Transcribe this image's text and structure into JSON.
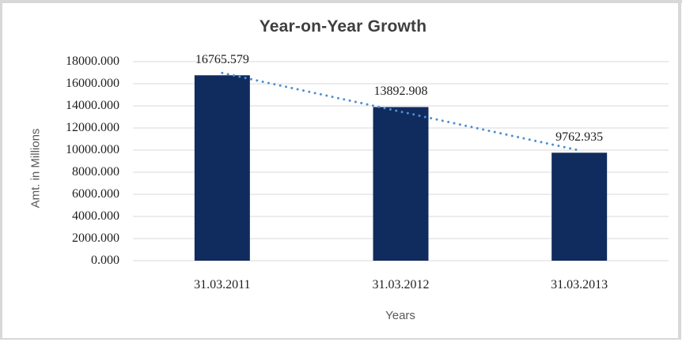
{
  "chart_data": {
    "type": "bar",
    "title": "Year-on-Year Growth",
    "xlabel": "Years",
    "ylabel": "Amt. in Millions",
    "categories": [
      "31.03.2011",
      "31.03.2012",
      "31.03.2013"
    ],
    "series": [
      {
        "name": "Amt. in Millions",
        "values": [
          16765.579,
          13892.908,
          9762.935
        ]
      }
    ],
    "data_labels": [
      "16765.579",
      "13892.908",
      "9762.935"
    ],
    "y_ticks": [
      0,
      2000,
      4000,
      6000,
      8000,
      10000,
      12000,
      14000,
      16000,
      18000
    ],
    "y_tick_labels": [
      "0.000",
      "2000.000",
      "4000.000",
      "6000.000",
      "8000.000",
      "10000.000",
      "12000.000",
      "14000.000",
      "16000.000",
      "18000.000"
    ],
    "ylim": [
      0,
      18000
    ],
    "grid": "horizontal",
    "legend": "none",
    "trendline": {
      "fit": "linear",
      "style": "dotted"
    },
    "colors": {
      "bar": "#102c5e",
      "trendline": "#4e8fd1",
      "gridline": "#d9d9d9",
      "title_text": "#3f3f3f",
      "axis_title_text": "#595959",
      "tick_text": "#1f1f1f",
      "frame_border": "#d8d8d8",
      "background": "#ffffff"
    }
  }
}
